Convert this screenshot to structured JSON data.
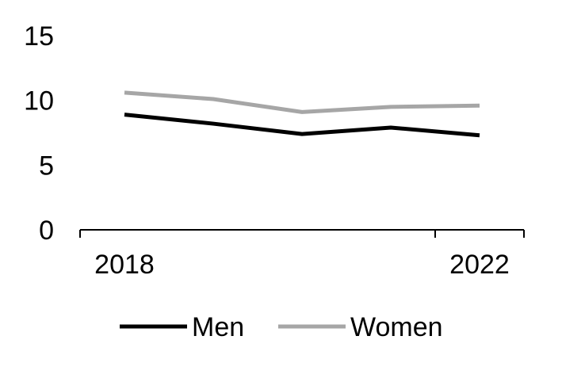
{
  "chart_data": {
    "type": "line",
    "x": [
      2018,
      2019,
      2020,
      2021,
      2022
    ],
    "xticks": [
      "2018",
      "2022"
    ],
    "yticks": [
      "0",
      "5",
      "10",
      "15"
    ],
    "ylim": [
      0,
      15
    ],
    "grid": false,
    "legend_position": "bottom",
    "series": [
      {
        "name": "Men",
        "color": "#000000",
        "values": [
          8.9,
          8.2,
          7.4,
          7.9,
          7.3
        ]
      },
      {
        "name": "Women",
        "color": "#a6a6a6",
        "values": [
          10.6,
          10.1,
          9.1,
          9.5,
          9.6
        ]
      }
    ]
  }
}
